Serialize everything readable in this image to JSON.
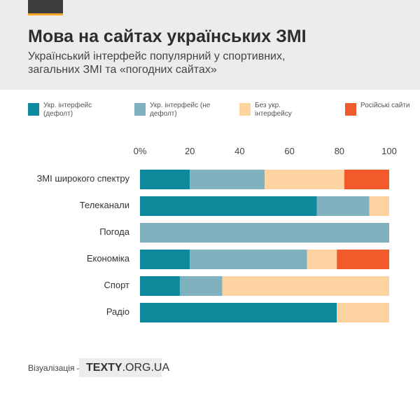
{
  "header": {
    "title": "Мова на сайтах українських ЗМІ",
    "subtitle": "Український інтерфейс популярний у спортивних, загальних ЗМІ та «погодних сайтах»"
  },
  "legend": [
    {
      "label": "Укр. інтерфейс (дефолт)",
      "color": "#0f8a9d"
    },
    {
      "label": "Укр. інтерфейс (не дефолт)",
      "color": "#80b1bf"
    },
    {
      "label": "Без укр. інтерфейсу",
      "color": "#fdd3a2"
    },
    {
      "label": "Російські сайти",
      "color": "#f15a2b"
    }
  ],
  "footer": {
    "label": "Візуалізація –",
    "brand_plain": "TEXTY",
    "brand_suffix": ".ORG.UA"
  },
  "chart_data": {
    "type": "bar",
    "orientation": "horizontal",
    "stacked": true,
    "xlim": [
      0,
      100
    ],
    "x_ticks": [
      "0%",
      "20",
      "40",
      "60",
      "80",
      "100"
    ],
    "x_tick_values": [
      0,
      20,
      40,
      60,
      80,
      100
    ],
    "categories": [
      "ЗМІ широкого спектру",
      "Телеканали",
      "Погода",
      "Економіка",
      "Спорт",
      "Радіо",
      ""
    ],
    "series": [
      {
        "name": "Укр. інтерфейс (дефолт)",
        "color": "#0f8a9d",
        "values": [
          20,
          71,
          0,
          20,
          16,
          79,
          0
        ]
      },
      {
        "name": "Укр. інтерфейс (не дефолт)",
        "color": "#80b1bf",
        "values": [
          30,
          21,
          100,
          47,
          17,
          0,
          0
        ]
      },
      {
        "name": "Без укр. інтерфейсу",
        "color": "#fdd3a2",
        "values": [
          32,
          8,
          0,
          12,
          67,
          21,
          0
        ]
      },
      {
        "name": "Російські сайти",
        "color": "#f15a2b",
        "values": [
          18,
          0,
          0,
          21,
          0,
          0,
          0
        ]
      }
    ]
  }
}
